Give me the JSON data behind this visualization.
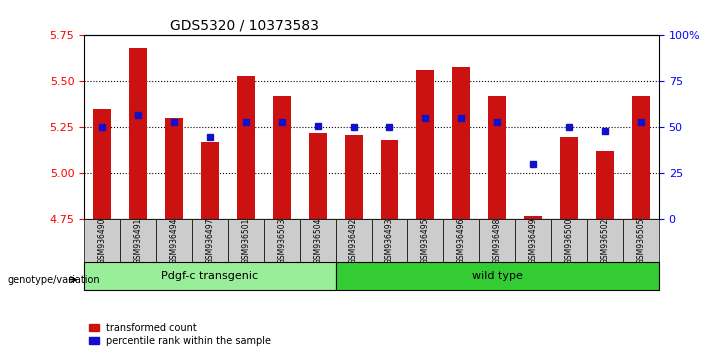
{
  "title": "GDS5320 / 10373583",
  "samples": [
    "GSM936490",
    "GSM936491",
    "GSM936494",
    "GSM936497",
    "GSM936501",
    "GSM936503",
    "GSM936504",
    "GSM936492",
    "GSM936493",
    "GSM936495",
    "GSM936496",
    "GSM936498",
    "GSM936499",
    "GSM936500",
    "GSM936502",
    "GSM936505"
  ],
  "transformed_count": [
    5.35,
    5.68,
    5.3,
    5.17,
    5.53,
    5.42,
    5.22,
    5.21,
    5.18,
    5.56,
    5.58,
    5.42,
    4.77,
    5.2,
    5.12,
    5.42
  ],
  "percentile_rank": [
    50,
    57,
    53,
    45,
    53,
    53,
    51,
    50,
    50,
    55,
    55,
    53,
    30,
    50,
    48,
    53
  ],
  "ylim_left": [
    4.75,
    5.75
  ],
  "ylim_right": [
    0,
    100
  ],
  "yticks_left": [
    4.75,
    5.0,
    5.25,
    5.5,
    5.75
  ],
  "yticks_right": [
    0,
    25,
    50,
    75,
    100
  ],
  "ytick_labels_right": [
    "0",
    "25",
    "50",
    "75",
    "100%"
  ],
  "group1_label": "Pdgf-c transgenic",
  "group2_label": "wild type",
  "group1_count": 7,
  "group2_count": 9,
  "bar_color": "#cc1111",
  "marker_color": "#1111cc",
  "bar_bottom": 4.75,
  "legend_label1": "transformed count",
  "legend_label2": "percentile rank within the sample",
  "genotype_label": "genotype/variation",
  "group1_bg": "#99ee99",
  "group2_bg": "#33cc33",
  "tick_bg": "#cccccc",
  "dotted_line_color": "#000000"
}
